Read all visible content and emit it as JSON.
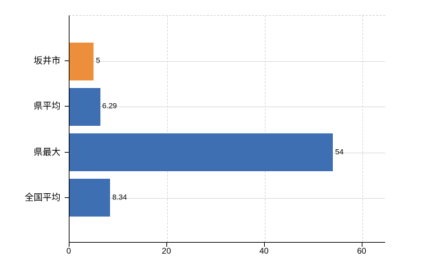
{
  "chart_data": {
    "type": "bar",
    "orientation": "horizontal",
    "title": "",
    "categories": [
      "坂井市",
      "県平均",
      "県最大",
      "全国平均"
    ],
    "values": [
      5,
      6.29,
      54,
      8.34
    ],
    "value_labels": [
      "5",
      "6.29",
      "54",
      "8.34"
    ],
    "bar_colors": [
      "#ed8e3b",
      "#3d6fb2",
      "#3d6fb2",
      "#3d6fb2"
    ],
    "xlim": [
      0,
      64.8
    ],
    "x_ticks": [
      0,
      20,
      40,
      60
    ],
    "x_tick_labels": [
      "0",
      "20",
      "40",
      "60"
    ],
    "grid": true,
    "legend": false
  },
  "colors": {
    "highlight_bar": "#ed8e3b",
    "default_bar": "#3d6fb2",
    "grid_line": "#d9d9d9",
    "axis_line": "#000000",
    "text": "#000000",
    "background": "#ffffff"
  }
}
